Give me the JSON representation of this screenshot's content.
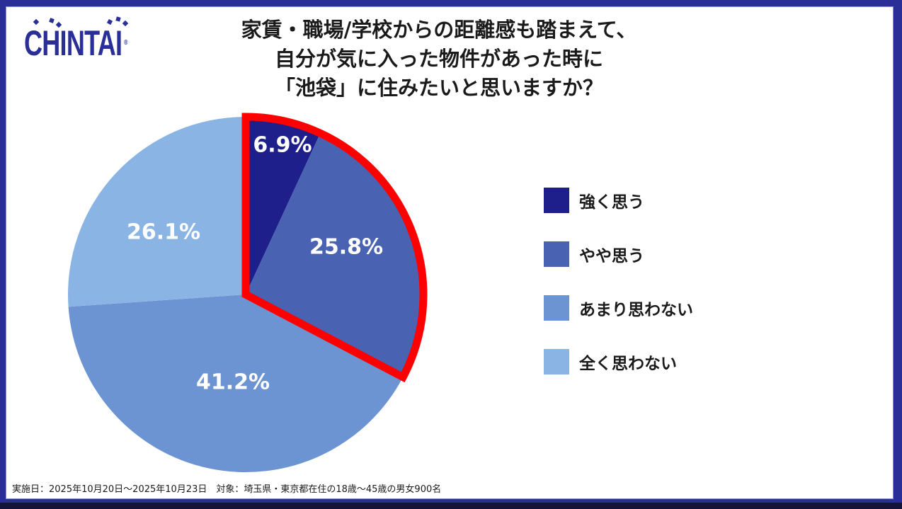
{
  "logo": {
    "text": "CHINTAI",
    "registered": "®"
  },
  "title": {
    "lines": [
      "家賃・職場/学校からの距離感も踏まえて、",
      "自分が気に入った物件があった時に",
      "「池袋」に住みたいと思いますか？"
    ]
  },
  "colors": {
    "frame": "#2a2f97",
    "highlight_outline": "#ff0000",
    "strongly_agree": "#1f1f8c",
    "somewhat_agree": "#4a62b2",
    "somewhat_disagree": "#6c94d2",
    "strongly_disagree": "#8ab4e4"
  },
  "legend": {
    "items": [
      {
        "label": "強く思う",
        "color": "#1f1f8c"
      },
      {
        "label": "やや思う",
        "color": "#4a62b2"
      },
      {
        "label": "あまり思わない",
        "color": "#6c94d2"
      },
      {
        "label": "全く思わない",
        "color": "#8ab4e4"
      }
    ]
  },
  "labels": {
    "s0": "6.9%",
    "s1": "25.8%",
    "s2": "41.2%",
    "s3": "26.1%"
  },
  "footnote": "実施日：2025年10月20日～2025年10月23日　対象：埼玉県・東京都在住の18歳～45歳の男女900名",
  "chart_data": {
    "type": "pie",
    "title": "家賃・職場/学校からの距離感も踏まえて、自分が気に入った物件があった時に「池袋」に住みたいと思いますか？",
    "categories": [
      "強く思う",
      "やや思う",
      "あまり思わない",
      "全く思わない"
    ],
    "values": [
      6.9,
      25.8,
      41.2,
      26.1
    ],
    "unit": "%",
    "colors": [
      "#1f1f8c",
      "#4a62b2",
      "#6c94d2",
      "#8ab4e4"
    ],
    "start_angle": "12 o'clock, clockwise",
    "highlight": {
      "categories": [
        "強く思う",
        "やや思う"
      ],
      "combined_value": 32.7,
      "style": "red outline"
    },
    "legend_position": "right",
    "annotation": "実施日：2025年10月20日～2025年10月23日　対象：埼玉県・東京都在住の18歳～45歳の男女900名"
  }
}
